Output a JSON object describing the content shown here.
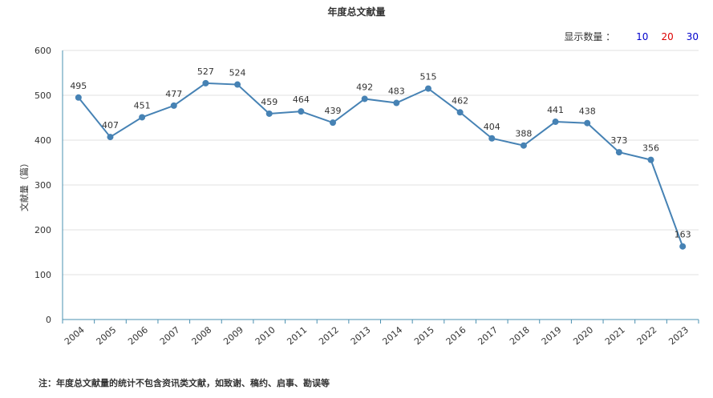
{
  "header": {
    "title": "年度总文献量",
    "count_label": "显示数量 ：",
    "count_options": [
      {
        "label": "10",
        "color": "#0000cc"
      },
      {
        "label": "20",
        "color": "#dd0000"
      },
      {
        "label": "30",
        "color": "#0000cc"
      }
    ]
  },
  "footer": {
    "note": "注：年度总文献量的统计不包含资讯类文献，如致谢、稿约、启事、勘误等"
  },
  "chart_data": {
    "type": "line",
    "title": "年度总文献量",
    "xlabel": "",
    "ylabel": "文献量（篇）",
    "ylim": [
      0,
      600
    ],
    "yticks": [
      0,
      100,
      200,
      300,
      400,
      500,
      600
    ],
    "grid": true,
    "line_color": "#4682b4",
    "x": [
      "2004",
      "2005",
      "2006",
      "2007",
      "2008",
      "2009",
      "2010",
      "2011",
      "2012",
      "2013",
      "2014",
      "2015",
      "2016",
      "2017",
      "2018",
      "2019",
      "2020",
      "2021",
      "2022",
      "2023"
    ],
    "values": [
      495,
      407,
      451,
      477,
      527,
      524,
      459,
      464,
      439,
      492,
      483,
      515,
      462,
      404,
      388,
      441,
      438,
      373,
      356,
      163
    ]
  }
}
